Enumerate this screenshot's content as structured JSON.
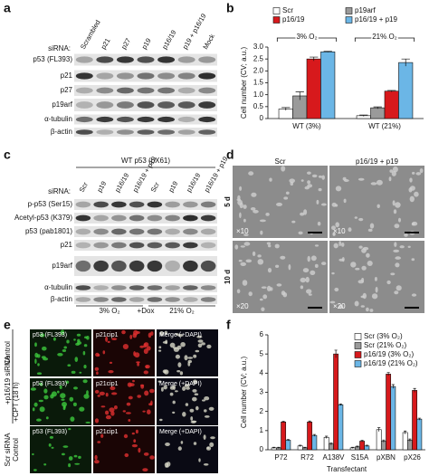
{
  "figure": {
    "letters": [
      "a",
      "b",
      "c",
      "d",
      "e",
      "f"
    ],
    "a": {
      "sirna_label": "siRNA:",
      "lanes": [
        "Scrambled",
        "p21",
        "p27",
        "p19",
        "p16/19",
        "p19 + p16/19",
        "Mock"
      ],
      "rows": [
        "p53 (FL393)",
        "p21",
        "p27",
        "p19arf",
        "α-tubulin",
        "β-actin"
      ]
    },
    "c": {
      "title": "WT p53 (pX61)",
      "sirna_label": "siRNA:",
      "lanes": [
        "Scr",
        "p19",
        "p16/19",
        "p16/19 + p19",
        "Scr",
        "p19",
        "p16/19",
        "p16/19 + p19"
      ],
      "rows": [
        "p-p53 (Ser15)",
        "Acetyl-p53 (K379)",
        "p53 (pab1801)",
        "p21",
        "p19arf",
        "α-tubulin",
        "β-actin"
      ],
      "conditions": [
        "3% O₂",
        "+Dox",
        "21% O₂"
      ]
    },
    "d": {
      "columns": [
        "Scr",
        "p16/19 + p19"
      ],
      "rows": [
        "5 d",
        "10 d"
      ],
      "magnifications": [
        "×10",
        "×10",
        "×20",
        "×20"
      ]
    },
    "e": {
      "groups": [
        "Control",
        "+p16/19 siRNA",
        "+CPT (18 h)",
        "Control",
        "Scr siRNA"
      ],
      "channels": [
        [
          "p53 (FL393)",
          "p21cip1",
          "Merge (+DAPI)"
        ],
        [
          "p53 (FL393)",
          "p21cip1",
          "Merge (+DAPI)"
        ],
        [
          "p53 (FL393)",
          "p21cip1",
          "Merge (+DAPI)"
        ]
      ]
    }
  },
  "chart_data": [
    {
      "type": "bar",
      "ylabel": "Cell number (CV; a.u.)",
      "categories": [
        "WT (3%)",
        "WT (21%)"
      ],
      "annotations": [
        "3% O₂",
        "21% O₂"
      ],
      "series": [
        {
          "name": "Scr",
          "color": "#ffffff",
          "values": [
            0.4,
            0.12
          ],
          "errors": [
            0.06,
            0.03
          ]
        },
        {
          "name": "p19arf",
          "color": "#9a9a9a",
          "values": [
            0.95,
            0.45
          ],
          "errors": [
            0.17,
            0.04
          ]
        },
        {
          "name": "p16/19",
          "color": "#d7191c",
          "values": [
            2.5,
            1.15
          ],
          "errors": [
            0.08,
            0.03
          ]
        },
        {
          "name": "p16/19 + p19",
          "color": "#6bb6e6",
          "values": [
            2.8,
            2.35
          ],
          "errors": [
            0.02,
            0.15
          ]
        }
      ],
      "ylim": [
        0,
        3
      ],
      "yticks": [
        0,
        0.5,
        {
          "value": 1,
          "label": "1.0"
        },
        1.5,
        {
          "value": 2,
          "label": "2.0"
        },
        2.5,
        {
          "value": 3,
          "label": "3.0"
        }
      ],
      "grid": false,
      "legend": "top"
    },
    {
      "type": "bar",
      "ylabel": "Cell number (CV; a.u.)",
      "xlabel": "Transfectant",
      "categories": [
        "P72",
        "R72",
        "A138V",
        "S15A",
        "pXBN",
        "pX26"
      ],
      "series": [
        {
          "name": "Scr (3% O₂)",
          "color": "#ffffff",
          "values": [
            0.1,
            0.2,
            0.65,
            0.1,
            1.05,
            0.9
          ],
          "errors": [
            0.03,
            0.04,
            0.06,
            0.03,
            0.1,
            0.08
          ]
        },
        {
          "name": "Scr (21% O₂)",
          "color": "#9a9a9a",
          "values": [
            0.1,
            0.1,
            0.3,
            0.15,
            0.45,
            0.5
          ],
          "errors": [
            0.03,
            0.03,
            0.05,
            0.04,
            0.06,
            0.06
          ]
        },
        {
          "name": "p16/19 (3% O₂)",
          "color": "#d7191c",
          "values": [
            1.45,
            1.45,
            5.0,
            0.45,
            3.95,
            3.1
          ],
          "errors": [
            0.04,
            0.05,
            0.2,
            0.05,
            0.08,
            0.1
          ]
        },
        {
          "name": "p16/19 (21% O₂)",
          "color": "#6bb6e6",
          "values": [
            0.5,
            0.75,
            2.35,
            0.2,
            3.3,
            1.6
          ],
          "errors": [
            0.04,
            0.05,
            0.04,
            0.04,
            0.1,
            0.05
          ]
        }
      ],
      "ylim": [
        0,
        6
      ],
      "yticks": [
        0,
        1,
        2,
        3,
        4,
        5,
        6
      ],
      "grid": false,
      "legend": "upper right"
    }
  ]
}
